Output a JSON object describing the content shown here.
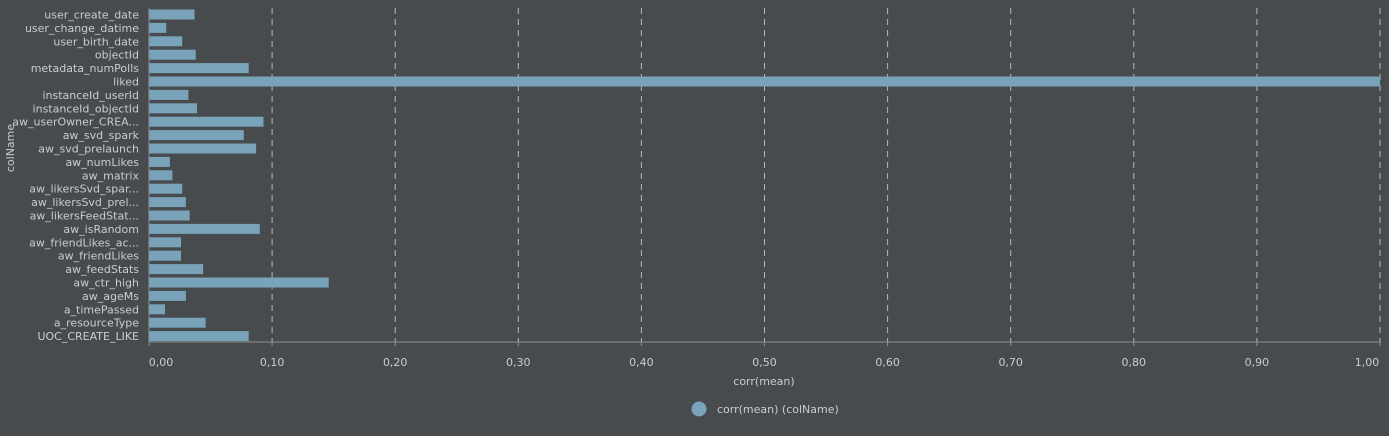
{
  "chart_data": {
    "type": "bar",
    "orientation": "horizontal",
    "categories": [
      "user_create_date",
      "user_change_datime",
      "user_birth_date",
      "objectId",
      "metadata_numPolls",
      "liked",
      "instanceId_userId",
      "instanceId_objectId",
      "aw_userOwner_CREA...",
      "aw_svd_spark",
      "aw_svd_prelaunch",
      "aw_numLikes",
      "aw_matrix",
      "aw_likersSvd_spar...",
      "aw_likersSvd_prel...",
      "aw_likersFeedStat...",
      "aw_isRandom",
      "aw_friendLikes_ac...",
      "aw_friendLikes",
      "aw_feedStats",
      "aw_ctr_high",
      "aw_ageMs",
      "a_timePassed",
      "a_resourceType",
      "UOC_CREATE_LIKE"
    ],
    "values": [
      0.037,
      0.014,
      0.027,
      0.038,
      0.081,
      1.0,
      0.032,
      0.039,
      0.093,
      0.077,
      0.087,
      0.017,
      0.019,
      0.027,
      0.03,
      0.033,
      0.09,
      0.026,
      0.026,
      0.044,
      0.146,
      0.03,
      0.013,
      0.046,
      0.081
    ],
    "xlabel": "corr(mean)",
    "ylabel": "colName",
    "xlim": [
      0,
      1.0
    ],
    "xticks": [
      0.0,
      0.1,
      0.2,
      0.3,
      0.4,
      0.5,
      0.6,
      0.7,
      0.8,
      0.9,
      1.0
    ],
    "xtick_labels": [
      "0,00",
      "0,10",
      "0,20",
      "0,30",
      "0,40",
      "0,50",
      "0,60",
      "0,70",
      "0,80",
      "0,90",
      "1,00"
    ],
    "grid": "vertical-dashed",
    "legend": {
      "label": "corr(mean) (colName)",
      "placement": "bottom-center"
    },
    "colors": {
      "background": "#474b4d",
      "bar": "#78a3b8",
      "grid": "#b5b9bb",
      "axis": "#8e9294",
      "text": "#c9cdcf"
    }
  }
}
